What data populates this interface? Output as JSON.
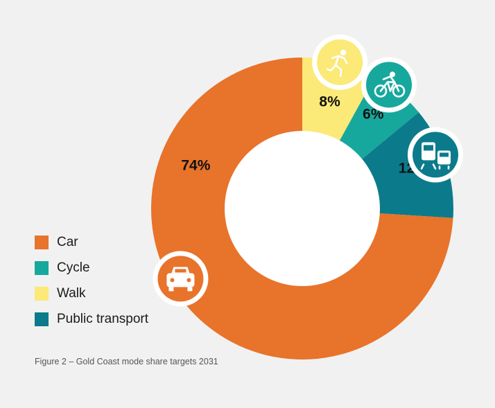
{
  "chart_data": {
    "type": "pie",
    "donut": true,
    "categories": [
      "Car",
      "Cycle",
      "Walk",
      "Public transport"
    ],
    "values": [
      74,
      6,
      8,
      12
    ],
    "value_labels": [
      "74%",
      "6%",
      "8%",
      "12%"
    ],
    "slice_order": [
      "Walk",
      "Cycle",
      "Public transport",
      "Car"
    ],
    "colors": {
      "Car": "#e8732b",
      "Cycle": "#17a89d",
      "Walk": "#fbe978",
      "Public transport": "#0b7b8c"
    },
    "icons": {
      "Car": "car-icon",
      "Cycle": "cyclist-icon",
      "Walk": "runner-icon",
      "Public transport": "train-bus-icon"
    },
    "legend_placement": "bottom-left",
    "caption": "Figure 2 – Gold Coast mode share targets 2031"
  }
}
